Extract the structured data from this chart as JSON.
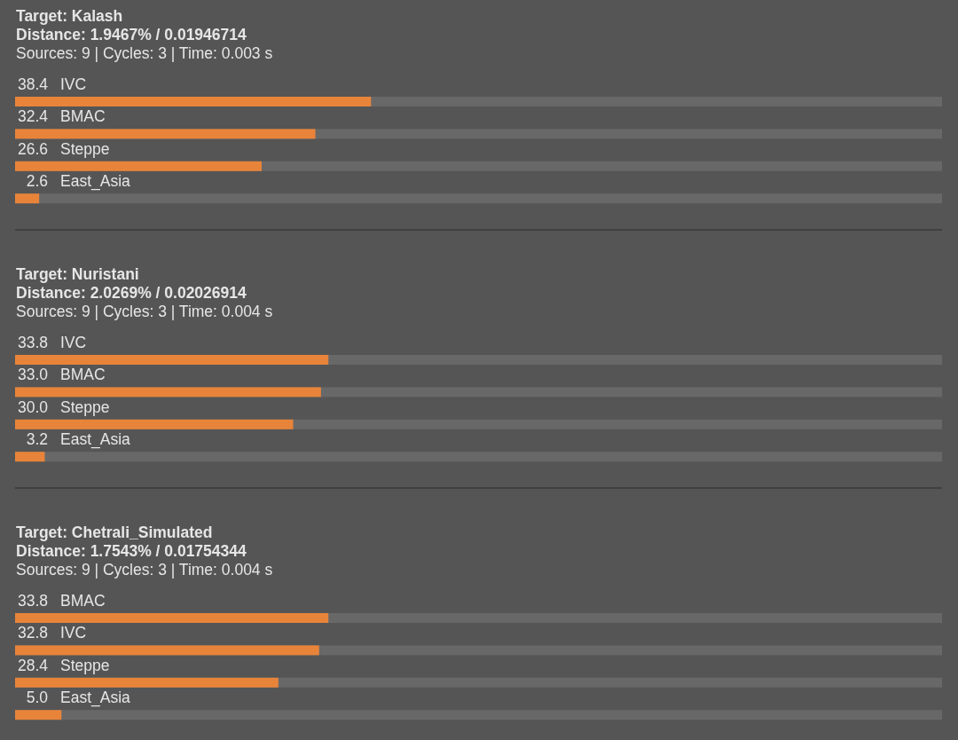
{
  "chart_data": [
    {
      "type": "bar",
      "orientation": "horizontal",
      "title": "Target: Kalash",
      "subtitle": "Distance: 1.9467% / 0.01946714",
      "annotations": [
        "Sources: 9 | Cycles: 3 | Time: 0.003 s"
      ],
      "categories": [
        "IVC",
        "BMAC",
        "Steppe",
        "East_Asia"
      ],
      "values": [
        38.4,
        32.4,
        26.6,
        2.6
      ],
      "value_labels": [
        "38.4",
        "32.4",
        "26.6",
        "2.6"
      ],
      "color": "#e8843a",
      "xlim": [
        0,
        100
      ]
    },
    {
      "type": "bar",
      "orientation": "horizontal",
      "title": "Target: Nuristani",
      "subtitle": "Distance: 2.0269% / 0.02026914",
      "annotations": [
        "Sources: 9 | Cycles: 3 | Time: 0.004 s"
      ],
      "categories": [
        "IVC",
        "BMAC",
        "Steppe",
        "East_Asia"
      ],
      "values": [
        33.8,
        33.0,
        30.0,
        3.2
      ],
      "value_labels": [
        "33.8",
        "33.0",
        "30.0",
        "3.2"
      ],
      "color": "#e8843a",
      "xlim": [
        0,
        100
      ]
    },
    {
      "type": "bar",
      "orientation": "horizontal",
      "title": "Target: Chetrali_Simulated",
      "subtitle": "Distance: 1.7543% / 0.01754344",
      "annotations": [
        "Sources: 9 | Cycles: 3 | Time: 0.004 s"
      ],
      "categories": [
        "BMAC",
        "IVC",
        "Steppe",
        "East_Asia"
      ],
      "values": [
        33.8,
        32.8,
        28.4,
        5.0
      ],
      "value_labels": [
        "33.8",
        "32.8",
        "28.4",
        "5.0"
      ],
      "color": "#e8843a",
      "xlim": [
        0,
        100
      ]
    }
  ]
}
